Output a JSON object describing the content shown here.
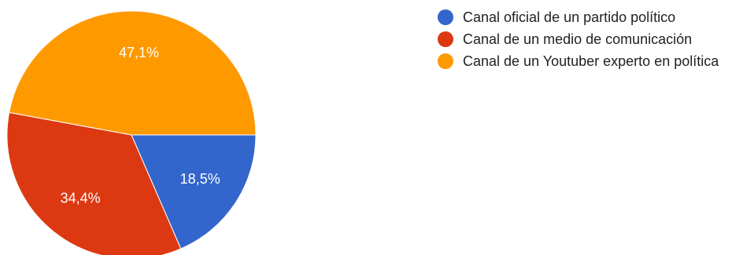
{
  "chart_data": {
    "type": "pie",
    "categories": [
      "Canal oficial de un partido político",
      "Canal de un medio de comunicación",
      "Canal de un Youtuber experto en política"
    ],
    "values": [
      18.5,
      34.4,
      47.1
    ],
    "labels": [
      "18,5%",
      "34,4%",
      "47,1%"
    ],
    "colors": [
      "#3366cc",
      "#dc3912",
      "#ff9900"
    ],
    "legend_position": "right"
  }
}
